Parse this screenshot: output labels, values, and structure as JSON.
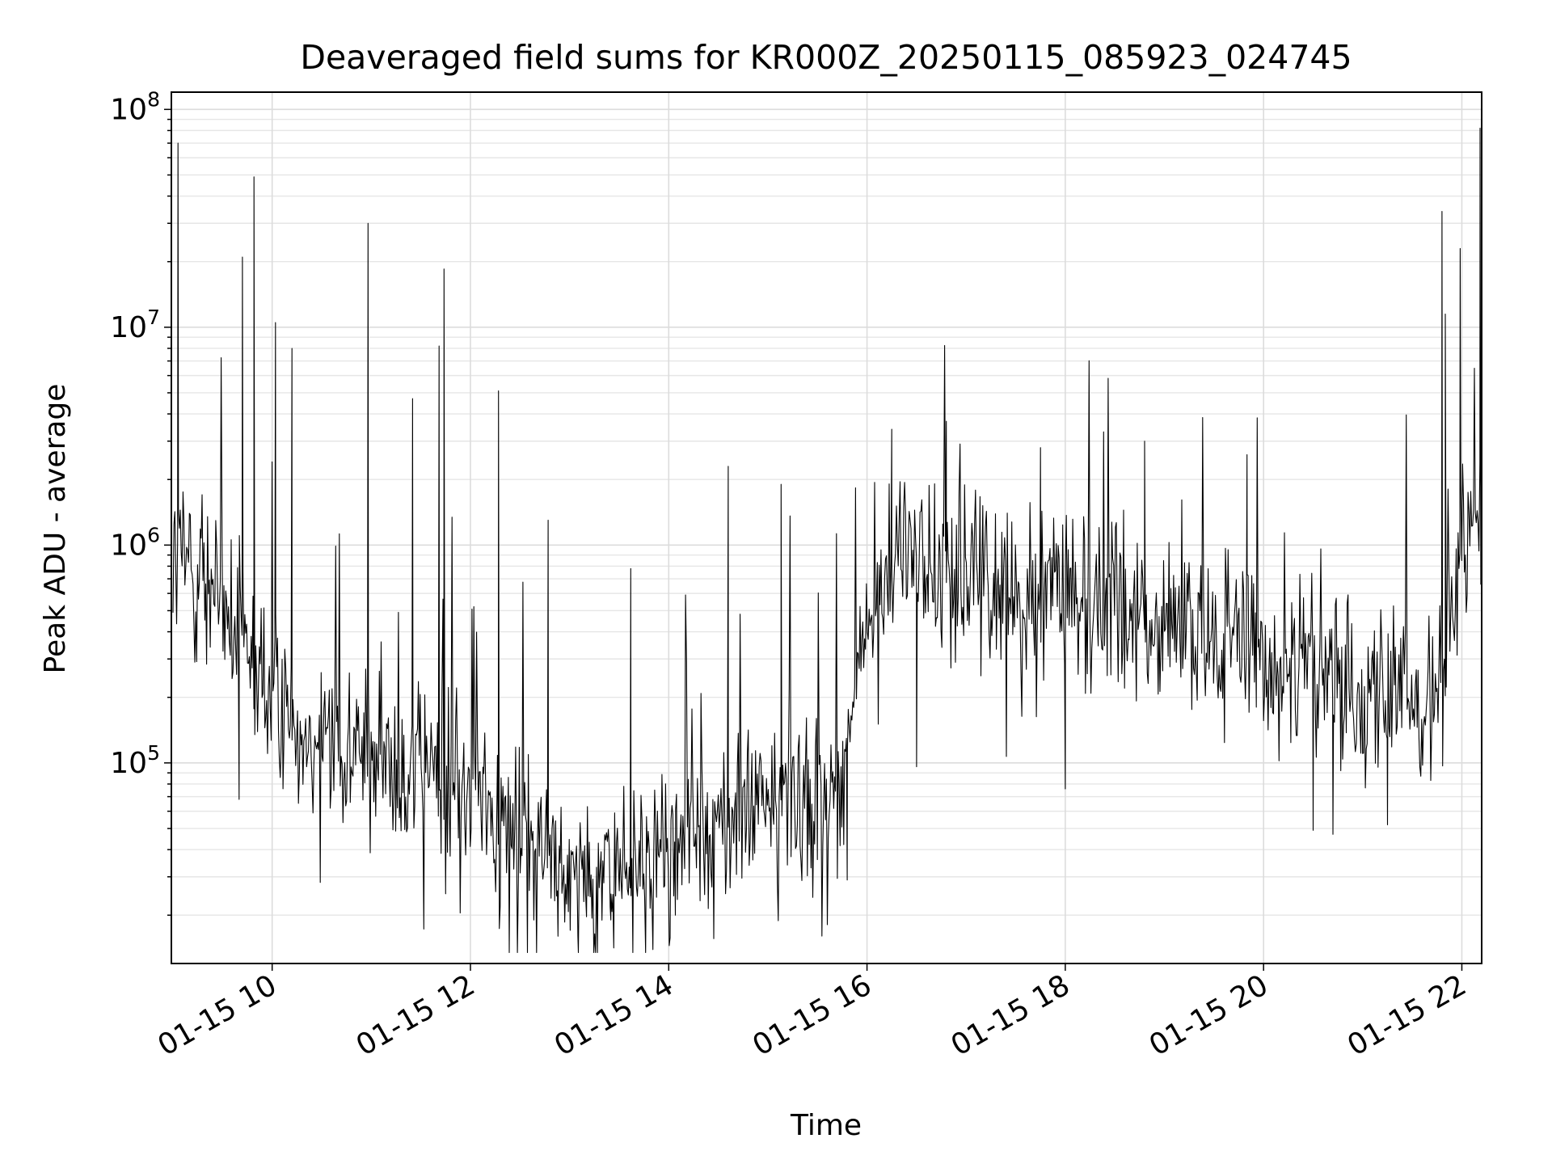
{
  "chart_data": {
    "type": "line",
    "title": "Deaveraged field sums for KR000Z_20250115_085923_024745",
    "xlabel": "Time",
    "ylabel": "Peak ADU - average",
    "yscale": "log",
    "grid": "major and minor on both axes",
    "legend": "none",
    "xlim": [
      "01-15 08:59",
      "01-15 22:12"
    ],
    "ylim": [
      12000,
      120000000
    ],
    "x_ticks": [
      {
        "label": "01-15 10",
        "time": "01-15 10:00"
      },
      {
        "label": "01-15 12",
        "time": "01-15 12:00"
      },
      {
        "label": "01-15 14",
        "time": "01-15 14:00"
      },
      {
        "label": "01-15 16",
        "time": "01-15 16:00"
      },
      {
        "label": "01-15 18",
        "time": "01-15 18:00"
      },
      {
        "label": "01-15 20",
        "time": "01-15 20:00"
      },
      {
        "label": "01-15 22",
        "time": "01-15 22:00"
      }
    ],
    "y_ticks": [
      {
        "base": "10",
        "exp": "5",
        "value": 100000
      },
      {
        "base": "10",
        "exp": "6",
        "value": 1000000
      },
      {
        "base": "10",
        "exp": "7",
        "value": 10000000
      },
      {
        "base": "10",
        "exp": "8",
        "value": 100000000
      }
    ],
    "series": [
      {
        "color": "#000000",
        "x": [
          "09:00",
          "09:10",
          "09:20",
          "09:30",
          "09:40",
          "09:50",
          "10:00",
          "10:15",
          "10:30",
          "10:45",
          "11:00",
          "11:15",
          "11:30",
          "11:45",
          "12:00",
          "12:15",
          "12:30",
          "12:45",
          "13:00",
          "13:15",
          "13:30",
          "13:45",
          "14:00",
          "14:15",
          "14:30",
          "14:45",
          "15:00",
          "15:15",
          "15:30",
          "15:45",
          "15:52",
          "16:00",
          "16:10",
          "16:20",
          "16:40",
          "17:00",
          "17:20",
          "17:40",
          "18:00",
          "18:20",
          "18:40",
          "19:00",
          "19:20",
          "19:40",
          "20:00",
          "20:20",
          "20:40",
          "21:00",
          "21:20",
          "21:40",
          "21:50",
          "22:00",
          "22:10"
        ],
        "y": [
          800000,
          900000,
          700000,
          500000,
          350000,
          250000,
          200000,
          170000,
          140000,
          120000,
          110000,
          100000,
          95000,
          85000,
          75000,
          60000,
          50000,
          40000,
          32000,
          30000,
          32000,
          35000,
          40000,
          45000,
          52000,
          58000,
          63000,
          68000,
          72000,
          75000,
          200000,
          400000,
          700000,
          900000,
          800000,
          700000,
          600000,
          650000,
          700000,
          550000,
          450000,
          420000,
          380000,
          350000,
          300000,
          280000,
          250000,
          220000,
          200000,
          180000,
          300000,
          900000,
          1200000
        ],
        "spikes": [
          {
            "x": "09:03",
            "y": 70000000
          },
          {
            "x": "09:49",
            "y": 49000000
          },
          {
            "x": "09:42",
            "y": 21000000
          },
          {
            "x": "10:02",
            "y": 10500000
          },
          {
            "x": "10:12",
            "y": 8000000
          },
          {
            "x": "10:58",
            "y": 30000000
          },
          {
            "x": "11:44",
            "y": 18500000
          },
          {
            "x": "11:41",
            "y": 8200000
          },
          {
            "x": "11:25",
            "y": 4700000
          },
          {
            "x": "12:17",
            "y": 5100000
          },
          {
            "x": "12:47",
            "y": 1300000
          },
          {
            "x": "13:37",
            "y": 780000
          },
          {
            "x": "14:36",
            "y": 2300000
          },
          {
            "x": "15:08",
            "y": 1900000
          },
          {
            "x": "16:15",
            "y": 3400000
          },
          {
            "x": "16:48",
            "y": 3700000
          },
          {
            "x": "17:45",
            "y": 2800000
          },
          {
            "x": "18:48",
            "y": 3000000
          },
          {
            "x": "19:50",
            "y": 2600000
          },
          {
            "x": "21:48",
            "y": 34000000
          },
          {
            "x": "21:50",
            "y": 11500000
          },
          {
            "x": "21:59",
            "y": 23000000
          },
          {
            "x": "22:11",
            "y": 82000000
          }
        ],
        "dips": [
          {
            "x": "09:40",
            "y": 68000
          },
          {
            "x": "11:45",
            "y": 27000
          },
          {
            "x": "12:53",
            "y": 16000
          },
          {
            "x": "13:05",
            "y": 16000
          },
          {
            "x": "13:25",
            "y": 19000
          },
          {
            "x": "14:04",
            "y": 20000
          },
          {
            "x": "15:48",
            "y": 29000
          },
          {
            "x": "16:30",
            "y": 96000
          },
          {
            "x": "18:00",
            "y": 76000
          },
          {
            "x": "20:30",
            "y": 49000
          },
          {
            "x": "20:42",
            "y": 47000
          },
          {
            "x": "21:15",
            "y": 52000
          }
        ]
      }
    ]
  }
}
